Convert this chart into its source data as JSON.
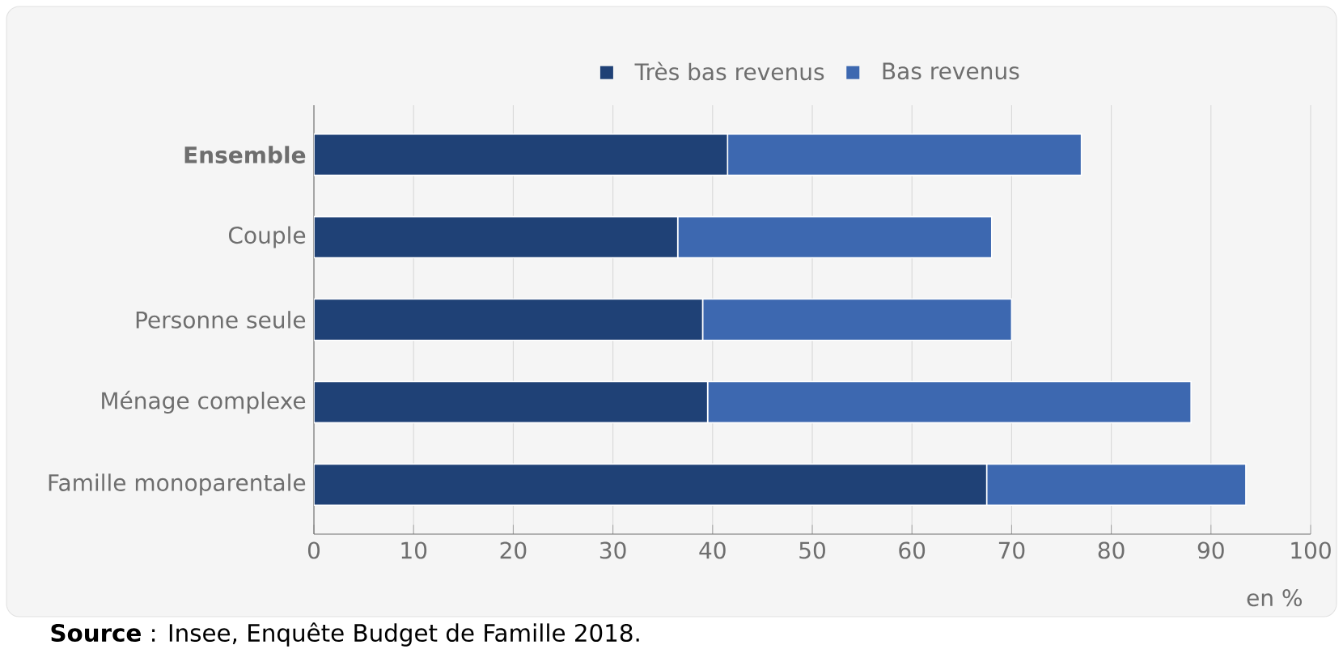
{
  "chart_data": {
    "type": "bar",
    "orientation": "horizontal",
    "stacked": true,
    "categories": [
      "Ensemble",
      "Couple",
      "Personne seule",
      "Ménage complexe",
      "Famille monoparentale"
    ],
    "series": [
      {
        "name": "Très bas revenus",
        "color": "#1f4176",
        "values": [
          41.5,
          36.5,
          39,
          39.5,
          67.5
        ]
      },
      {
        "name": "Bas revenus",
        "color": "#3d68b0",
        "values": [
          35.5,
          31.5,
          31,
          48.5,
          26
        ]
      }
    ],
    "xlabel": "en %",
    "xlim": [
      0,
      100
    ],
    "xticks": [
      0,
      10,
      20,
      30,
      40,
      50,
      60,
      70,
      80,
      90,
      100
    ],
    "grid": "x",
    "legend": "top",
    "annotations": [
      "**Source** : Insee, Enquête Budget de Famille 2018."
    ]
  }
}
